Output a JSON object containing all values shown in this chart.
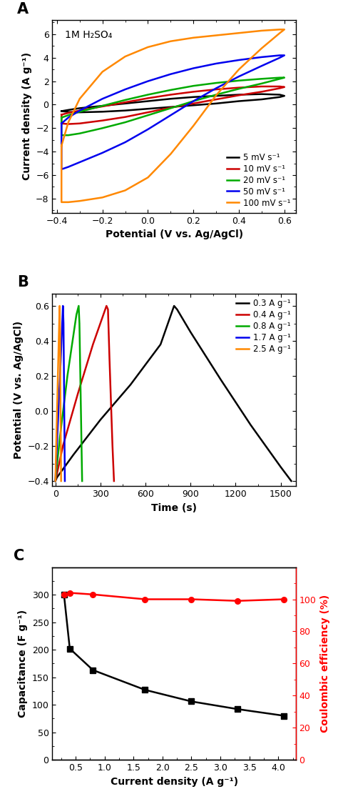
{
  "panel_A": {
    "annotation": "A",
    "xlabel": "Potential (V vs. Ag/AgCl)",
    "ylabel": "Current density (A g⁻¹)",
    "text_annotation": "1M H₂SO₄",
    "xlim": [
      -0.42,
      0.65
    ],
    "ylim": [
      -9.2,
      7.2
    ],
    "xticks": [
      -0.4,
      -0.2,
      0.0,
      0.2,
      0.4,
      0.6
    ],
    "yticks": [
      -8,
      -6,
      -4,
      -2,
      0,
      2,
      4,
      6
    ],
    "curves": [
      {
        "label": "5 mV s⁻¹",
        "color": "black",
        "lw": 1.8,
        "x_fwd": [
          -0.38,
          -0.35,
          -0.3,
          -0.2,
          -0.1,
          0.0,
          0.1,
          0.2,
          0.3,
          0.4,
          0.5,
          0.58,
          0.6
        ],
        "y_fwd": [
          -0.55,
          -0.45,
          -0.3,
          -0.1,
          0.1,
          0.3,
          0.5,
          0.65,
          0.75,
          0.85,
          0.9,
          0.85,
          0.75
        ],
        "x_bwd": [
          0.6,
          0.58,
          0.5,
          0.4,
          0.3,
          0.2,
          0.1,
          0.0,
          -0.1,
          -0.2,
          -0.3,
          -0.35,
          -0.38
        ],
        "y_bwd": [
          0.75,
          0.65,
          0.45,
          0.3,
          0.1,
          -0.05,
          -0.2,
          -0.35,
          -0.5,
          -0.6,
          -0.65,
          -0.62,
          -0.55
        ]
      },
      {
        "label": "10 mV s⁻¹",
        "color": "#cc0000",
        "lw": 1.8,
        "x_fwd": [
          -0.38,
          -0.35,
          -0.3,
          -0.2,
          -0.1,
          0.0,
          0.1,
          0.2,
          0.3,
          0.4,
          0.5,
          0.58,
          0.6
        ],
        "y_fwd": [
          -0.85,
          -0.7,
          -0.5,
          -0.15,
          0.2,
          0.55,
          0.85,
          1.1,
          1.3,
          1.45,
          1.55,
          1.55,
          1.5
        ],
        "x_bwd": [
          0.6,
          0.58,
          0.5,
          0.4,
          0.3,
          0.2,
          0.1,
          0.0,
          -0.1,
          -0.2,
          -0.3,
          -0.35,
          -0.38
        ],
        "y_bwd": [
          1.5,
          1.4,
          1.1,
          0.8,
          0.45,
          0.1,
          -0.25,
          -0.65,
          -1.05,
          -1.35,
          -1.6,
          -1.65,
          -1.6
        ]
      },
      {
        "label": "20 mV s⁻¹",
        "color": "#00aa00",
        "lw": 1.8,
        "x_fwd": [
          -0.38,
          -0.35,
          -0.3,
          -0.2,
          -0.1,
          0.0,
          0.1,
          0.2,
          0.3,
          0.4,
          0.5,
          0.58,
          0.6
        ],
        "y_fwd": [
          -1.1,
          -0.9,
          -0.6,
          -0.1,
          0.4,
          0.85,
          1.25,
          1.6,
          1.85,
          2.05,
          2.2,
          2.3,
          2.3
        ],
        "x_bwd": [
          0.6,
          0.58,
          0.5,
          0.4,
          0.3,
          0.2,
          0.1,
          0.0,
          -0.1,
          -0.2,
          -0.3,
          -0.35,
          -0.38
        ],
        "y_bwd": [
          2.3,
          2.2,
          1.8,
          1.35,
          0.85,
          0.3,
          -0.3,
          -0.9,
          -1.5,
          -2.0,
          -2.45,
          -2.6,
          -2.6
        ]
      },
      {
        "label": "50 mV s⁻¹",
        "color": "#0000ee",
        "lw": 1.8,
        "x_fwd": [
          -0.38,
          -0.35,
          -0.3,
          -0.2,
          -0.1,
          0.0,
          0.1,
          0.2,
          0.3,
          0.4,
          0.5,
          0.58,
          0.6
        ],
        "y_fwd": [
          -1.6,
          -1.1,
          -0.5,
          0.5,
          1.3,
          2.0,
          2.6,
          3.1,
          3.5,
          3.8,
          4.05,
          4.2,
          4.2
        ],
        "x_bwd": [
          0.6,
          0.58,
          0.5,
          0.4,
          0.3,
          0.2,
          0.1,
          0.0,
          -0.1,
          -0.2,
          -0.3,
          -0.35,
          -0.38
        ],
        "y_bwd": [
          4.2,
          4.0,
          3.3,
          2.4,
          1.4,
          0.3,
          -0.9,
          -2.1,
          -3.2,
          -4.1,
          -4.9,
          -5.3,
          -5.5
        ]
      },
      {
        "label": "100 mV s⁻¹",
        "color": "#ff8800",
        "lw": 1.8,
        "x_fwd": [
          -0.38,
          -0.35,
          -0.3,
          -0.2,
          -0.1,
          0.0,
          0.1,
          0.2,
          0.3,
          0.4,
          0.5,
          0.58,
          0.6
        ],
        "y_fwd": [
          -3.5,
          -1.5,
          0.5,
          2.8,
          4.1,
          4.9,
          5.4,
          5.7,
          5.9,
          6.1,
          6.3,
          6.4,
          6.4
        ],
        "x_bwd": [
          0.6,
          0.58,
          0.5,
          0.4,
          0.3,
          0.2,
          0.1,
          0.0,
          -0.1,
          -0.2,
          -0.3,
          -0.35,
          -0.38
        ],
        "y_bwd": [
          6.4,
          6.1,
          4.8,
          3.0,
          0.8,
          -1.8,
          -4.2,
          -6.2,
          -7.3,
          -7.9,
          -8.2,
          -8.3,
          -8.3
        ]
      }
    ]
  },
  "panel_B": {
    "annotation": "B",
    "xlabel": "Time (s)",
    "ylabel": "Potential (V vs. Ag/AgCl)",
    "xlim": [
      -20,
      1600
    ],
    "ylim": [
      -0.43,
      0.67
    ],
    "xticks": [
      0,
      300,
      600,
      900,
      1200,
      1500
    ],
    "yticks": [
      -0.4,
      -0.2,
      0.0,
      0.2,
      0.4,
      0.6
    ],
    "curves": [
      {
        "label": "0.3 A g⁻¹",
        "color": "black",
        "lw": 1.8,
        "x": [
          0,
          10,
          120,
          300,
          500,
          700,
          790,
          810,
          900,
          1100,
          1300,
          1500,
          1570
        ],
        "y": [
          -0.4,
          -0.38,
          -0.25,
          -0.05,
          0.15,
          0.38,
          0.6,
          0.58,
          0.45,
          0.18,
          -0.08,
          -0.32,
          -0.4
        ]
      },
      {
        "label": "0.4 A g⁻¹",
        "color": "#cc0000",
        "lw": 1.8,
        "x": [
          0,
          5,
          50,
          150,
          250,
          340,
          350,
          360,
          380,
          390
        ],
        "y": [
          -0.4,
          -0.38,
          -0.2,
          0.1,
          0.38,
          0.6,
          0.58,
          0.3,
          -0.2,
          -0.4
        ]
      },
      {
        "label": "0.8 A g⁻¹",
        "color": "#00aa00",
        "lw": 1.8,
        "x": [
          0,
          3,
          30,
          80,
          140,
          155,
          160,
          170,
          178
        ],
        "y": [
          -0.4,
          -0.37,
          -0.15,
          0.2,
          0.55,
          0.6,
          0.5,
          0.0,
          -0.4
        ]
      },
      {
        "label": "1.7 A g⁻¹",
        "color": "#0000ee",
        "lw": 1.8,
        "x": [
          0,
          2,
          15,
          35,
          50,
          54,
          58,
          63
        ],
        "y": [
          -0.4,
          -0.36,
          -0.1,
          0.28,
          0.6,
          0.5,
          0.1,
          -0.4
        ]
      },
      {
        "label": "2.5 A g⁻¹",
        "color": "#ff8800",
        "lw": 1.8,
        "x": [
          0,
          1,
          8,
          20,
          28,
          31,
          34,
          38
        ],
        "y": [
          -0.4,
          -0.36,
          -0.1,
          0.32,
          0.6,
          0.45,
          0.05,
          -0.4
        ]
      }
    ]
  },
  "panel_C": {
    "annotation": "C",
    "xlabel": "Current density (A g⁻¹)",
    "ylabel_left": "Capacitance (F g⁻¹)",
    "ylabel_right": "Coulombic efficiency (%)",
    "xlim": [
      0.1,
      4.3
    ],
    "ylim_left": [
      0,
      350
    ],
    "ylim_right": [
      0,
      120
    ],
    "xticks": [
      0.5,
      1.0,
      1.5,
      2.0,
      2.5,
      3.0,
      3.5,
      4.0
    ],
    "yticks_left": [
      0,
      50,
      100,
      150,
      200,
      250,
      300
    ],
    "yticks_right": [
      0,
      20,
      40,
      60,
      80,
      100
    ],
    "cap_x": [
      0.3,
      0.4,
      0.8,
      1.7,
      2.5,
      3.3,
      4.1
    ],
    "cap_y": [
      300,
      202,
      163,
      127,
      106,
      92,
      80
    ],
    "eff_x": [
      0.3,
      0.4,
      0.8,
      1.7,
      2.5,
      3.3,
      4.1
    ],
    "eff_y": [
      103,
      104,
      103,
      100,
      100,
      99,
      100
    ]
  }
}
